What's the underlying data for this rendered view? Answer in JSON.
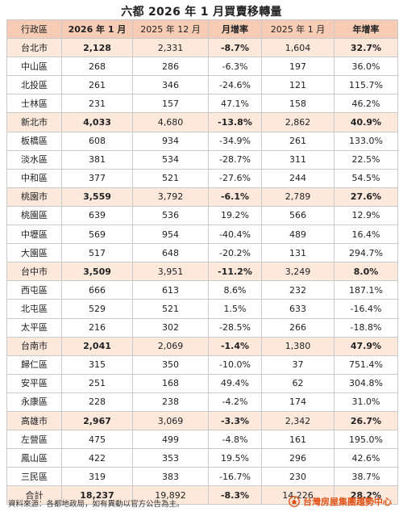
{
  "title": "六都 2026 年 1 月買賣移轉量",
  "headers": [
    "行政區",
    "2026 年 1 月",
    "2025 年 12 月",
    "月增率",
    "2025 年 1 月",
    "年增率"
  ],
  "rows": [
    {
      "type": "city",
      "cells": [
        "台北市",
        "2,128",
        "2,331",
        "-8.7%",
        "1,604",
        "32.7%"
      ]
    },
    {
      "type": "district",
      "cells": [
        "中山區",
        "268",
        "286",
        "-6.3%",
        "197",
        "36.0%"
      ]
    },
    {
      "type": "district",
      "cells": [
        "北投區",
        "261",
        "346",
        "-24.6%",
        "121",
        "115.7%"
      ]
    },
    {
      "type": "district",
      "cells": [
        "士林區",
        "231",
        "157",
        "47.1%",
        "158",
        "46.2%"
      ]
    },
    {
      "type": "city",
      "cells": [
        "新北市",
        "4,033",
        "4,680",
        "-13.8%",
        "2,862",
        "40.9%"
      ]
    },
    {
      "type": "district",
      "cells": [
        "板橋區",
        "608",
        "934",
        "-34.9%",
        "261",
        "133.0%"
      ]
    },
    {
      "type": "district",
      "cells": [
        "淡水區",
        "381",
        "534",
        "-28.7%",
        "311",
        "22.5%"
      ]
    },
    {
      "type": "district",
      "cells": [
        "中和區",
        "377",
        "521",
        "-27.6%",
        "244",
        "54.5%"
      ]
    },
    {
      "type": "city",
      "cells": [
        "桃園市",
        "3,559",
        "3,792",
        "-6.1%",
        "2,789",
        "27.6%"
      ]
    },
    {
      "type": "district",
      "cells": [
        "桃園區",
        "639",
        "536",
        "19.2%",
        "566",
        "12.9%"
      ]
    },
    {
      "type": "district",
      "cells": [
        "中壢區",
        "569",
        "954",
        "-40.4%",
        "489",
        "16.4%"
      ]
    },
    {
      "type": "district",
      "cells": [
        "大園區",
        "517",
        "648",
        "-20.2%",
        "131",
        "294.7%"
      ]
    },
    {
      "type": "city",
      "cells": [
        "台中市",
        "3,509",
        "3,951",
        "-11.2%",
        "3,249",
        "8.0%"
      ]
    },
    {
      "type": "district",
      "cells": [
        "西屯區",
        "666",
        "613",
        "8.6%",
        "232",
        "187.1%"
      ]
    },
    {
      "type": "district",
      "cells": [
        "北屯區",
        "529",
        "521",
        "1.5%",
        "633",
        "-16.4%"
      ]
    },
    {
      "type": "district",
      "cells": [
        "太平區",
        "216",
        "302",
        "-28.5%",
        "266",
        "-18.8%"
      ]
    },
    {
      "type": "city",
      "cells": [
        "台南市",
        "2,041",
        "2,069",
        "-1.4%",
        "1,380",
        "47.9%"
      ]
    },
    {
      "type": "district",
      "cells": [
        "歸仁區",
        "315",
        "350",
        "-10.0%",
        "37",
        "751.4%"
      ]
    },
    {
      "type": "district",
      "cells": [
        "安平區",
        "251",
        "168",
        "49.4%",
        "62",
        "304.8%"
      ]
    },
    {
      "type": "district",
      "cells": [
        "永康區",
        "228",
        "238",
        "-4.2%",
        "174",
        "31.0%"
      ]
    },
    {
      "type": "city",
      "cells": [
        "高雄市",
        "2,967",
        "3,069",
        "-3.3%",
        "2,342",
        "26.7%"
      ]
    },
    {
      "type": "district",
      "cells": [
        "左營區",
        "475",
        "499",
        "-4.8%",
        "161",
        "195.0%"
      ]
    },
    {
      "type": "district",
      "cells": [
        "鳳山區",
        "422",
        "353",
        "19.5%",
        "296",
        "42.6%"
      ]
    },
    {
      "type": "district",
      "cells": [
        "三民區",
        "319",
        "383",
        "-16.7%",
        "230",
        "38.7%"
      ]
    },
    {
      "type": "total",
      "cells": [
        "合計",
        "18,237",
        "19,892",
        "-8.3%",
        "14,226",
        "28.2%"
      ]
    }
  ],
  "footer": {
    "note": "資料來源：各都地政局，如有異動以官方公告為主。",
    "brand_label": "台灣房屋集團趨勢中心",
    "brand_icon": "house-logo-icon",
    "brand_color": "#e0551a"
  },
  "colors": {
    "header_bg": "#f6cdb4",
    "city_row_bg": "#fde9dc"
  }
}
